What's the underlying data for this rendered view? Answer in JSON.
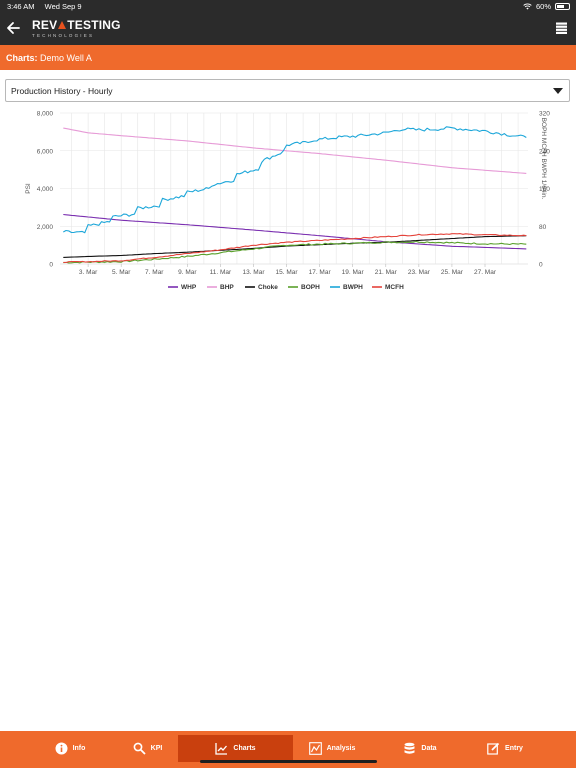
{
  "status_bar": {
    "time": "3:46 AM",
    "date": "Wed Sep 9",
    "battery_text": "60%",
    "battery_level": 0.6
  },
  "header": {
    "logo_main_left": "REV",
    "logo_main_right": "TESTING",
    "logo_sub": "TECHNOLOGIES"
  },
  "subheader": {
    "label": "Charts:",
    "well": "Demo Well A"
  },
  "dropdown": {
    "selected": "Production History - Hourly"
  },
  "chart_data": {
    "type": "line",
    "x_tick_labels": [
      "3. Mar",
      "5. Mar",
      "7. Mar",
      "9. Mar",
      "11. Mar",
      "13. Mar",
      "15. Mar",
      "17. Mar",
      "19. Mar",
      "21. Mar",
      "23. Mar",
      "25. Mar",
      "27. Mar"
    ],
    "x_range": [
      1.3,
      29.6
    ],
    "left_axis": {
      "label": "PSI",
      "ticks": [
        "0",
        "2,000",
        "4,000",
        "6,000",
        "8,000"
      ],
      "range": [
        0,
        8000
      ]
    },
    "right_axis": {
      "label": "BOPH MCFH BWPH 1/64in.",
      "ticks": [
        "0",
        "80",
        "160",
        "240",
        "320"
      ],
      "range": [
        0,
        320
      ]
    },
    "grid": true,
    "legend_position": "bottom",
    "series": [
      {
        "name": "WHP",
        "axis": "left",
        "color": "#7a2fb0",
        "x": [
          1.5,
          5,
          9,
          13,
          17,
          21,
          25,
          29.5
        ],
        "y": [
          2620,
          2320,
          2080,
          1800,
          1500,
          1180,
          940,
          800
        ]
      },
      {
        "name": "BHP",
        "axis": "left",
        "color": "#e69ad6",
        "x": [
          1.5,
          3,
          5,
          9,
          13,
          17,
          21,
          25,
          29.5
        ],
        "y": [
          7200,
          6950,
          6800,
          6520,
          6150,
          5850,
          5500,
          5100,
          4800
        ]
      },
      {
        "name": "Choke",
        "axis": "right",
        "color": "#111111",
        "x": [
          1.5,
          3,
          5,
          7,
          9,
          11,
          13,
          15,
          17,
          19,
          21,
          23,
          25,
          27,
          29.5
        ],
        "y": [
          14,
          16,
          18,
          22,
          25,
          29,
          33,
          38,
          41,
          44,
          46,
          50,
          54,
          58,
          60
        ]
      },
      {
        "name": "BOPH",
        "axis": "right",
        "color": "#5aa02c",
        "x": [
          1.5,
          3,
          5,
          7,
          9,
          11,
          13,
          15,
          17,
          19,
          21,
          23,
          25,
          27,
          29.5
        ],
        "y": [
          3,
          4,
          5,
          10,
          16,
          24,
          32,
          40,
          42,
          44,
          46,
          47,
          45,
          43,
          42
        ]
      },
      {
        "name": "BWPH",
        "axis": "right",
        "color": "#1ca6d9",
        "x": [
          1.5,
          2.8,
          3.0,
          4.3,
          4.5,
          5.8,
          6.0,
          7.3,
          7.5,
          8.8,
          9.0,
          10.3,
          10.5,
          11.8,
          12.0,
          13.3,
          13.5,
          14.8,
          15.0,
          16.3,
          16.5,
          18,
          19.5,
          21,
          22,
          23,
          25,
          27,
          29.5
        ],
        "y": [
          68,
          66,
          80,
          90,
          100,
          106,
          118,
          124,
          136,
          144,
          152,
          160,
          168,
          178,
          190,
          202,
          218,
          238,
          252,
          258,
          262,
          268,
          272,
          278,
          286,
          284,
          288,
          282,
          268
        ]
      },
      {
        "name": "MCFH",
        "axis": "right",
        "color": "#e4433b",
        "x": [
          1.5,
          3,
          5,
          7,
          9,
          11,
          13,
          15,
          17,
          19,
          21,
          23,
          25,
          27,
          29.5
        ],
        "y": [
          4,
          5,
          7,
          14,
          22,
          30,
          40,
          46,
          50,
          54,
          58,
          62,
          64,
          62,
          60
        ]
      }
    ]
  },
  "tabs": [
    {
      "label": "Info",
      "icon": "info-icon",
      "active": false
    },
    {
      "label": "KPI",
      "icon": "kpi-icon",
      "active": false
    },
    {
      "label": "Charts",
      "icon": "charts-icon",
      "active": true
    },
    {
      "label": "Analysis",
      "icon": "analysis-icon",
      "active": false
    },
    {
      "label": "Data",
      "icon": "database-icon",
      "active": false
    },
    {
      "label": "Entry",
      "icon": "edit-icon",
      "active": false
    }
  ]
}
